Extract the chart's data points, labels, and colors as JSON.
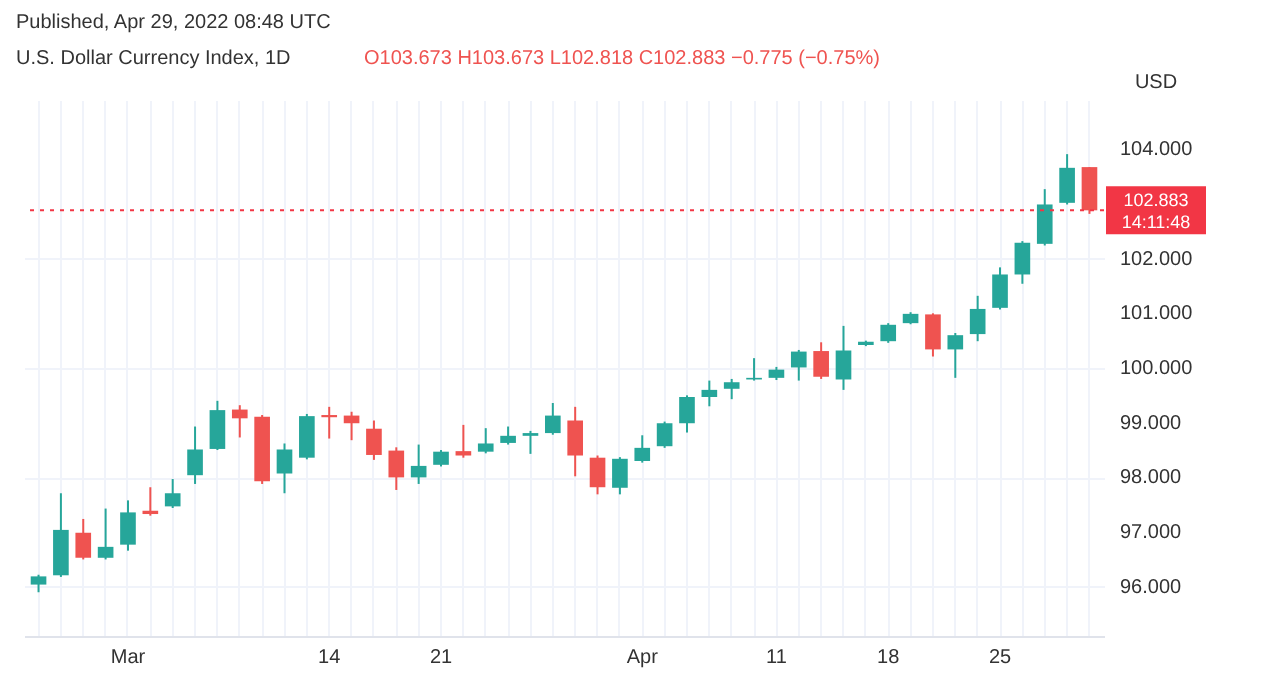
{
  "chart_data": {
    "type": "candlestick",
    "title": "U.S. Dollar Currency Index, 1D",
    "subtitle": "O103.673 H103.673 L102.818 C102.883 −0.775 (−0.75%)",
    "ylabel": "USD",
    "annotations": [
      "Published, Apr 29, 2022 08:48 UTC"
    ],
    "categories": [
      null,
      null,
      null,
      null,
      "Mar",
      null,
      null,
      null,
      null,
      null,
      null,
      null,
      null,
      "14",
      null,
      null,
      null,
      null,
      "21",
      null,
      null,
      null,
      null,
      null,
      null,
      null,
      null,
      "Apr",
      null,
      null,
      null,
      null,
      null,
      "11",
      null,
      null,
      null,
      null,
      "18",
      null,
      null,
      null,
      null,
      "25",
      null,
      null,
      null,
      null
    ],
    "ohlc": [
      [
        96.04,
        96.22,
        95.9,
        96.19
      ],
      [
        96.21,
        97.71,
        96.18,
        97.04
      ],
      [
        96.99,
        97.24,
        96.5,
        96.53
      ],
      [
        96.53,
        97.43,
        96.5,
        96.73
      ],
      [
        96.77,
        97.58,
        96.66,
        97.36
      ],
      [
        97.39,
        97.82,
        97.3,
        97.33
      ],
      [
        97.47,
        97.97,
        97.44,
        97.71
      ],
      [
        98.04,
        98.93,
        97.88,
        98.51
      ],
      [
        98.52,
        99.4,
        98.5,
        99.23
      ],
      [
        99.24,
        99.32,
        98.73,
        99.08
      ],
      [
        99.11,
        99.14,
        97.88,
        97.93
      ],
      [
        98.07,
        98.62,
        97.71,
        98.51
      ],
      [
        98.36,
        99.16,
        98.33,
        99.12
      ],
      [
        99.14,
        99.29,
        98.71,
        99.1
      ],
      [
        99.13,
        99.2,
        98.68,
        98.99
      ],
      [
        98.89,
        99.04,
        98.32,
        98.41
      ],
      [
        98.49,
        98.55,
        97.77,
        98.0
      ],
      [
        98.0,
        98.6,
        97.88,
        98.21
      ],
      [
        98.23,
        98.5,
        98.2,
        98.47
      ],
      [
        98.48,
        98.96,
        98.36,
        98.4
      ],
      [
        98.47,
        98.9,
        98.44,
        98.62
      ],
      [
        98.63,
        98.93,
        98.6,
        98.76
      ],
      [
        98.76,
        98.85,
        98.43,
        98.81
      ],
      [
        98.81,
        99.36,
        98.78,
        99.13
      ],
      [
        99.04,
        99.29,
        98.02,
        98.4
      ],
      [
        98.36,
        98.4,
        97.69,
        97.82
      ],
      [
        97.81,
        98.37,
        97.69,
        98.34
      ],
      [
        98.3,
        98.77,
        98.27,
        98.54
      ],
      [
        98.57,
        99.02,
        98.54,
        98.99
      ],
      [
        98.99,
        99.5,
        98.82,
        99.47
      ],
      [
        99.47,
        99.77,
        99.3,
        99.6
      ],
      [
        99.62,
        99.8,
        99.43,
        99.74
      ],
      [
        99.79,
        100.18,
        99.77,
        99.82
      ],
      [
        99.82,
        100.02,
        99.78,
        99.97
      ],
      [
        100.01,
        100.33,
        99.77,
        100.3
      ],
      [
        100.31,
        100.47,
        99.8,
        99.84
      ],
      [
        99.79,
        100.77,
        99.6,
        100.32
      ],
      [
        100.42,
        100.5,
        100.4,
        100.48
      ],
      [
        100.49,
        100.82,
        100.46,
        100.79
      ],
      [
        100.82,
        101.02,
        100.8,
        100.99
      ],
      [
        100.98,
        101.0,
        100.21,
        100.34
      ],
      [
        100.34,
        100.64,
        99.82,
        100.6
      ],
      [
        100.62,
        101.32,
        100.49,
        101.08
      ],
      [
        101.1,
        101.84,
        101.07,
        101.71
      ],
      [
        101.71,
        102.32,
        101.54,
        102.29
      ],
      [
        102.27,
        103.27,
        102.24,
        102.99
      ],
      [
        103.02,
        103.91,
        102.99,
        103.66
      ],
      [
        103.673,
        103.673,
        102.818,
        102.883
      ]
    ],
    "colors": [
      "#26a69a",
      "#26a69a",
      "#ef5350",
      "#26a69a",
      "#26a69a",
      "#ef5350",
      "#26a69a",
      "#26a69a",
      "#26a69a",
      "#ef5350",
      "#ef5350",
      "#26a69a",
      "#26a69a",
      "#ef5350",
      "#ef5350",
      "#ef5350",
      "#ef5350",
      "#26a69a",
      "#26a69a",
      "#ef5350",
      "#26a69a",
      "#26a69a",
      "#26a69a",
      "#26a69a",
      "#ef5350",
      "#ef5350",
      "#26a69a",
      "#26a69a",
      "#26a69a",
      "#26a69a",
      "#26a69a",
      "#26a69a",
      "#26a69a",
      "#26a69a",
      "#26a69a",
      "#ef5350",
      "#26a69a",
      "#26a69a",
      "#26a69a",
      "#26a69a",
      "#ef5350",
      "#26a69a",
      "#26a69a",
      "#26a69a",
      "#26a69a",
      "#26a69a",
      "#26a69a",
      "#ef5350"
    ],
    "ylim": [
      95.1,
      104.9
    ],
    "yticks": [
      {
        "value": 96,
        "label": "96.000"
      },
      {
        "value": 97,
        "label": "97.000"
      },
      {
        "value": 98,
        "label": "98.000"
      },
      {
        "value": 99,
        "label": "99.000"
      },
      {
        "value": 100,
        "label": "100.000"
      },
      {
        "value": 101,
        "label": "101.000"
      },
      {
        "value": 102,
        "label": "102.000"
      },
      {
        "value": 104,
        "label": "104.000"
      }
    ],
    "ref_lines": [
      {
        "axis": "y",
        "value": 102.883,
        "label": "102.883\n14:11:48",
        "color": "#f23645",
        "line_style": "dotted"
      }
    ],
    "grid": true
  }
}
